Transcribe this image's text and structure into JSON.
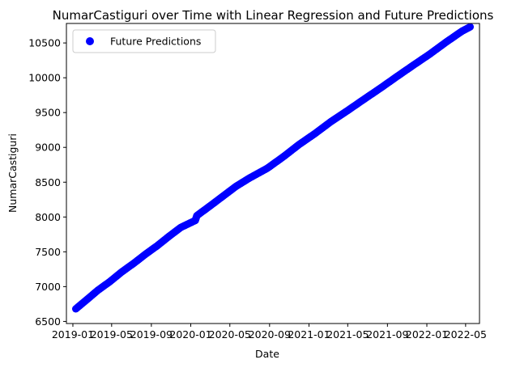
{
  "chart_data": {
    "type": "scatter",
    "title": "NumarCastiguri over Time with Linear Regression and Future Predictions",
    "xlabel": "Date",
    "ylabel": "NumarCastiguri",
    "xlim": [
      "2018-12-12",
      "2022-06-13"
    ],
    "ylim": [
      6470,
      10780
    ],
    "x_ticks": [
      {
        "date": "2019-01-01",
        "label": "2019-01"
      },
      {
        "date": "2019-05-01",
        "label": "2019-05"
      },
      {
        "date": "2019-09-01",
        "label": "2019-09"
      },
      {
        "date": "2020-01-01",
        "label": "2020-01"
      },
      {
        "date": "2020-05-01",
        "label": "2020-05"
      },
      {
        "date": "2020-09-01",
        "label": "2020-09"
      },
      {
        "date": "2021-01-01",
        "label": "2021-01"
      },
      {
        "date": "2021-05-01",
        "label": "2021-05"
      },
      {
        "date": "2021-09-01",
        "label": "2021-09"
      },
      {
        "date": "2022-01-01",
        "label": "2022-01"
      },
      {
        "date": "2022-05-01",
        "label": "2022-05"
      }
    ],
    "y_ticks": [
      6500,
      7000,
      7500,
      8000,
      8500,
      9000,
      9500,
      10000,
      10500
    ],
    "legend": {
      "position": "top-left"
    },
    "grid": false,
    "series": [
      {
        "name": "Future Predictions",
        "color": "#0000ff",
        "points": [
          {
            "x": "2019-01-10",
            "y": 6680
          },
          {
            "x": "2019-02-15",
            "y": 6820
          },
          {
            "x": "2019-03-20",
            "y": 6950
          },
          {
            "x": "2019-04-25",
            "y": 7070
          },
          {
            "x": "2019-06-01",
            "y": 7210
          },
          {
            "x": "2019-07-10",
            "y": 7340
          },
          {
            "x": "2019-08-15",
            "y": 7470
          },
          {
            "x": "2019-09-20",
            "y": 7590
          },
          {
            "x": "2019-10-25",
            "y": 7720
          },
          {
            "x": "2019-12-01",
            "y": 7850
          },
          {
            "x": "2020-01-15",
            "y": 7950
          },
          {
            "x": "2020-01-20",
            "y": 8020
          },
          {
            "x": "2020-03-01",
            "y": 8160
          },
          {
            "x": "2020-04-10",
            "y": 8300
          },
          {
            "x": "2020-05-20",
            "y": 8440
          },
          {
            "x": "2020-07-01",
            "y": 8560
          },
          {
            "x": "2020-08-25",
            "y": 8700
          },
          {
            "x": "2020-10-15",
            "y": 8870
          },
          {
            "x": "2020-12-01",
            "y": 9040
          },
          {
            "x": "2021-01-20",
            "y": 9200
          },
          {
            "x": "2021-03-10",
            "y": 9370
          },
          {
            "x": "2021-05-01",
            "y": 9530
          },
          {
            "x": "2021-06-20",
            "y": 9690
          },
          {
            "x": "2021-08-10",
            "y": 9850
          },
          {
            "x": "2021-10-01",
            "y": 10020
          },
          {
            "x": "2021-11-20",
            "y": 10180
          },
          {
            "x": "2022-01-10",
            "y": 10340
          },
          {
            "x": "2022-03-01",
            "y": 10510
          },
          {
            "x": "2022-04-20",
            "y": 10670
          },
          {
            "x": "2022-05-15",
            "y": 10730
          }
        ]
      }
    ]
  }
}
